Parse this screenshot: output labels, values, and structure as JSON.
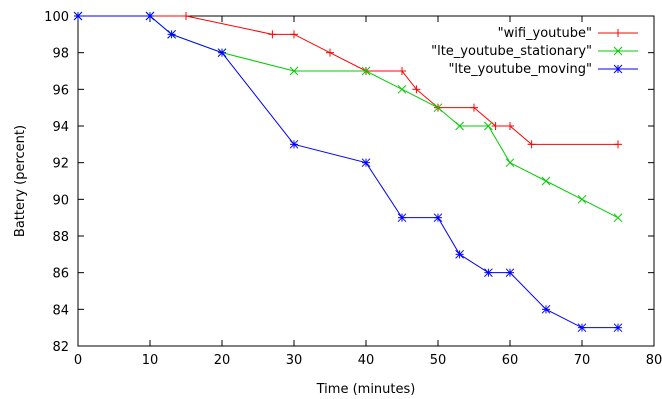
{
  "chart_data": {
    "type": "line",
    "title": "",
    "xlabel": "Time (minutes)",
    "ylabel": "Battery (percent)",
    "xlim": [
      0,
      80
    ],
    "ylim": [
      82,
      100
    ],
    "xticks": [
      0,
      10,
      20,
      30,
      40,
      50,
      60,
      70,
      80
    ],
    "yticks": [
      82,
      84,
      86,
      88,
      90,
      92,
      94,
      96,
      98,
      100
    ],
    "grid": false,
    "legend": "top-right",
    "series": [
      {
        "name": "\"wifi_youtube\"",
        "color": "#ff0000",
        "marker": "plus",
        "x": [
          0,
          15,
          27,
          30,
          35,
          40,
          45,
          47,
          50,
          55,
          58,
          60,
          63,
          75
        ],
        "y": [
          100,
          100,
          99,
          99,
          98,
          97,
          97,
          96,
          95,
          95,
          94,
          94,
          93,
          93
        ]
      },
      {
        "name": "\"lte_youtube_stationary\"",
        "color": "#00cc00",
        "marker": "cross",
        "x": [
          0,
          10,
          13,
          20,
          30,
          40,
          45,
          50,
          53,
          57,
          60,
          65,
          70,
          75
        ],
        "y": [
          100,
          100,
          99,
          98,
          97,
          97,
          96,
          95,
          94,
          94,
          92,
          91,
          90,
          89
        ]
      },
      {
        "name": "\"lte_youtube_moving\"",
        "color": "#0000ff",
        "marker": "star",
        "x": [
          0,
          10,
          13,
          20,
          30,
          40,
          45,
          50,
          53,
          57,
          60,
          65,
          70,
          75
        ],
        "y": [
          100,
          100,
          99,
          98,
          93,
          92,
          89,
          89,
          87,
          86,
          86,
          84,
          83,
          83
        ]
      }
    ]
  }
}
